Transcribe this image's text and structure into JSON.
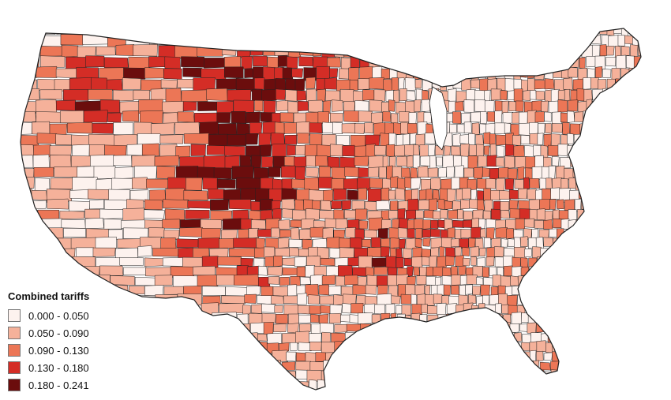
{
  "legend": {
    "title": "Combined tariffs",
    "classes": [
      {
        "label": "0.000 - 0.050",
        "color": "#fdf2ee"
      },
      {
        "label": "0.050 - 0.090",
        "color": "#f5b19a"
      },
      {
        "label": "0.090 - 0.130",
        "color": "#ec7656"
      },
      {
        "label": "0.130 - 0.180",
        "color": "#d42d26"
      },
      {
        "label": "0.180 - 0.241",
        "color": "#6b0d0d"
      }
    ]
  },
  "map": {
    "subject": "United States counties, combined tariffs",
    "border_color": "#222222"
  }
}
